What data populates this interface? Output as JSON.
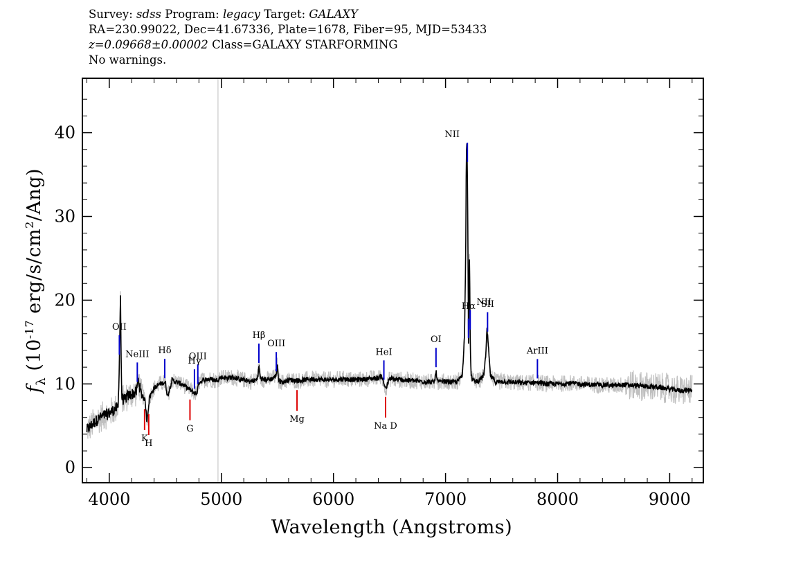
{
  "header": {
    "line1": {
      "survey_label": "Survey:",
      "survey_value": "sdss",
      "program_label": "Program:",
      "program_value": "legacy",
      "target_label": "Target:",
      "target_value": "GALAXY"
    },
    "line2": "RA=230.99022, Dec=41.67336, Plate=1678, Fiber=95, MJD=53433",
    "line3": {
      "redshift": "z=0.09668±0.00002",
      "class": "Class=GALAXY STARFORMING"
    },
    "line4": "No warnings."
  },
  "colors": {
    "spectrum": "#000000",
    "noise": "#c0c0c0",
    "emission_marker": "#0000cc",
    "absorption_marker": "#dd0000",
    "reference_line": "#c8c8c8"
  },
  "chart_data": {
    "type": "line",
    "title": "",
    "xlabel": "Wavelength (Angstroms)",
    "ylabel": "f_λ (10^-17 erg/s/cm^2/Ang)",
    "xlim": [
      3760,
      9300
    ],
    "ylim": [
      -1.8,
      46.5
    ],
    "x_ticks": [
      4000,
      5000,
      6000,
      7000,
      8000,
      9000
    ],
    "y_ticks": [
      0,
      10,
      20,
      30,
      40
    ],
    "grid": false,
    "vertical_reference_line_x": 4970,
    "series": [
      {
        "role": "spectrum",
        "x": [
          3800,
          3850,
          3900,
          3950,
          4000,
          4050,
          4080,
          4090,
          4100,
          4110,
          4130,
          4160,
          4200,
          4240,
          4260,
          4280,
          4320,
          4335,
          4360,
          4400,
          4450,
          4500,
          4520,
          4560,
          4600,
          4650,
          4700,
          4750,
          4780,
          4800,
          4850,
          4900,
          4950,
          5000,
          5050,
          5100,
          5150,
          5200,
          5250,
          5300,
          5320,
          5335,
          5350,
          5400,
          5450,
          5490,
          5500,
          5510,
          5550,
          5600,
          5700,
          5800,
          5900,
          6000,
          6100,
          6200,
          6300,
          6400,
          6430,
          6450,
          6470,
          6500,
          6600,
          6700,
          6800,
          6900,
          6915,
          6930,
          6950,
          7000,
          7100,
          7150,
          7170,
          7180,
          7185,
          7190,
          7195,
          7200,
          7205,
          7210,
          7215,
          7220,
          7225,
          7230,
          7240,
          7260,
          7300,
          7340,
          7360,
          7370,
          7380,
          7390,
          7400,
          7450,
          7500,
          7600,
          7700,
          7800,
          7900,
          8000,
          8100,
          8200,
          8300,
          8400,
          8500,
          8600,
          8700,
          8800,
          8900,
          9000,
          9100,
          9200
        ],
        "y": [
          4.5,
          5.2,
          5.8,
          6.2,
          6.5,
          7.0,
          7.2,
          13.0,
          20.8,
          8.5,
          8.0,
          8.5,
          8.8,
          9.0,
          10.5,
          9.0,
          8.0,
          5.5,
          8.5,
          9.5,
          10.0,
          10.2,
          8.5,
          10.5,
          10.2,
          10.0,
          9.5,
          9.0,
          8.8,
          10.2,
          10.5,
          10.6,
          10.4,
          10.8,
          10.7,
          10.8,
          10.6,
          10.5,
          10.3,
          10.4,
          10.6,
          12.0,
          10.6,
          10.5,
          10.6,
          11.0,
          12.5,
          10.4,
          10.2,
          10.5,
          10.4,
          10.6,
          10.5,
          10.5,
          10.6,
          10.5,
          10.6,
          10.7,
          11.0,
          10.0,
          9.5,
          10.6,
          10.5,
          10.4,
          10.3,
          10.2,
          11.5,
          10.3,
          10.2,
          10.3,
          10.2,
          11.0,
          16.0,
          25.0,
          37.0,
          39.0,
          36.0,
          27.0,
          15.0,
          23.0,
          25.0,
          16.0,
          12.0,
          11.0,
          10.5,
          10.3,
          10.4,
          11.0,
          13.5,
          16.5,
          15.0,
          13.0,
          11.0,
          10.2,
          10.3,
          10.2,
          10.1,
          10.2,
          10.0,
          10.0,
          10.1,
          10.0,
          9.9,
          9.9,
          9.8,
          9.9,
          9.8,
          9.7,
          9.6,
          9.4,
          9.2,
          9.3
        ]
      }
    ],
    "emission_lines": [
      {
        "label": "OII",
        "x": 4090
      },
      {
        "label": "NeIII",
        "x": 4250
      },
      {
        "label": "Hδ",
        "x": 4495
      },
      {
        "label": "Hγ",
        "x": 4760
      },
      {
        "label": "OIII",
        "x": 4790
      },
      {
        "label": "Hβ",
        "x": 5335
      },
      {
        "label": "OIII",
        "x": 5490
      },
      {
        "label": "HeI",
        "x": 6450
      },
      {
        "label": "OI",
        "x": 6915
      },
      {
        "label": "NII",
        "x": 7195
      },
      {
        "label": "Hα",
        "x": 7205
      },
      {
        "label": "NII",
        "x": 7220
      },
      {
        "label": "SII",
        "x": 7375
      },
      {
        "label": "ArIII",
        "x": 7820
      }
    ],
    "absorption_lines": [
      {
        "label": "K",
        "x": 4315
      },
      {
        "label": "H",
        "x": 4352
      },
      {
        "label": "G",
        "x": 4720
      },
      {
        "label": "Mg",
        "x": 5675
      },
      {
        "label": "Na D",
        "x": 6465
      }
    ]
  }
}
